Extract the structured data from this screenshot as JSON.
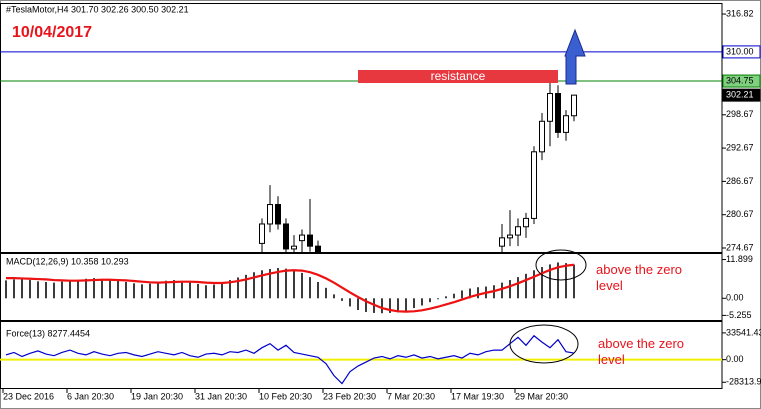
{
  "chart_data": [
    {
      "type": "candlestick",
      "title": "#TeslaMotor,H4  301.70 302.26 300.50 302.21",
      "date_label": "10/04/2017",
      "annotation": "resistance",
      "open": [
        null,
        null,
        null,
        null,
        null,
        null,
        null,
        null,
        null,
        null,
        null,
        null,
        null,
        null,
        null,
        null,
        null,
        null,
        null,
        null,
        null,
        null,
        null,
        null,
        null,
        null,
        null,
        null,
        null,
        null,
        null,
        null,
        275.5,
        279.0,
        282.5,
        279.0,
        274.5,
        276.0,
        277.0,
        275.0,
        null,
        null,
        null,
        null,
        null,
        null,
        null,
        null,
        null,
        null,
        null,
        null,
        null,
        null,
        null,
        null,
        null,
        null,
        null,
        null,
        null,
        null,
        275.0,
        276.5,
        277.0,
        278.5,
        280.0,
        292.0,
        297.5,
        302.5,
        295.5,
        298.5
      ],
      "high": [
        null,
        null,
        null,
        null,
        null,
        null,
        null,
        null,
        null,
        null,
        null,
        null,
        null,
        null,
        null,
        null,
        null,
        null,
        null,
        null,
        null,
        null,
        null,
        null,
        null,
        null,
        null,
        null,
        null,
        null,
        null,
        null,
        280.0,
        286.0,
        284.0,
        280.0,
        277.0,
        278.0,
        283.5,
        276.0,
        null,
        null,
        null,
        null,
        null,
        null,
        null,
        null,
        null,
        null,
        null,
        null,
        null,
        null,
        null,
        null,
        null,
        null,
        null,
        null,
        null,
        null,
        279.0,
        281.5,
        280.0,
        281.0,
        293.0,
        299.0,
        304.5,
        304.0,
        299.5,
        302.26
      ],
      "low": [
        null,
        null,
        null,
        null,
        null,
        null,
        null,
        null,
        null,
        null,
        null,
        null,
        null,
        null,
        null,
        null,
        null,
        null,
        null,
        null,
        null,
        null,
        null,
        null,
        null,
        null,
        null,
        null,
        null,
        null,
        null,
        null,
        273.0,
        277.5,
        278.0,
        273.0,
        272.0,
        273.0,
        274.0,
        272.0,
        null,
        null,
        null,
        null,
        null,
        null,
        null,
        null,
        null,
        null,
        null,
        null,
        null,
        null,
        null,
        null,
        null,
        null,
        null,
        null,
        null,
        null,
        273.5,
        275.0,
        275.0,
        276.5,
        279.0,
        290.5,
        293.0,
        294.5,
        294.0,
        297.5
      ],
      "close": [
        null,
        null,
        null,
        null,
        null,
        null,
        null,
        null,
        null,
        null,
        null,
        null,
        null,
        null,
        null,
        null,
        null,
        null,
        null,
        null,
        null,
        null,
        null,
        null,
        null,
        null,
        null,
        null,
        null,
        null,
        null,
        null,
        279.0,
        282.5,
        279.0,
        274.5,
        275.0,
        277.0,
        275.0,
        273.5,
        null,
        null,
        null,
        null,
        null,
        null,
        null,
        null,
        null,
        null,
        null,
        null,
        null,
        null,
        null,
        null,
        null,
        null,
        null,
        null,
        null,
        null,
        276.5,
        277.0,
        278.5,
        280.0,
        292.0,
        297.5,
        302.5,
        295.5,
        298.5,
        302.21
      ],
      "ylim": [
        273.95,
        318.63
      ],
      "yticks": [
        316.82,
        {
          "value": 310,
          "label": "310.00"
        },
        304.75,
        302.21,
        298.67,
        292.67,
        286.67,
        280.67,
        274.67
      ],
      "levels": [
        {
          "value": 310,
          "color": "#0000cc"
        },
        {
          "value": 304.75,
          "color": "#008000"
        }
      ]
    },
    {
      "type": "macd",
      "title": "MACD(12,26,9) 10.358 10.293",
      "annotation": "above the zero level",
      "values": [
        5.5,
        5.8,
        6.0,
        5.6,
        5.2,
        5.0,
        4.8,
        5.1,
        5.4,
        5.7,
        6.0,
        6.2,
        5.9,
        5.5,
        5.3,
        5.0,
        4.6,
        4.3,
        4.5,
        4.9,
        5.4,
        5.6,
        5.3,
        5.0,
        4.4,
        4.0,
        4.2,
        4.8,
        5.6,
        6.4,
        7.2,
        8.0,
        8.6,
        9.0,
        9.3,
        9.1,
        8.6,
        7.8,
        6.5,
        5.0,
        3.2,
        1.2,
        -0.8,
        -2.5,
        -3.6,
        -4.2,
        -4.5,
        -4.6,
        -4.5,
        -4.3,
        -3.8,
        -3.0,
        -2.2,
        -1.2,
        -0.3,
        0.6,
        1.4,
        2.4,
        3.0,
        3.4,
        3.6,
        4.0,
        4.8,
        5.6,
        6.5,
        7.5,
        8.6,
        9.6,
        10.4,
        11.0,
        10.8,
        10.358
      ],
      "signal": [
        6.2,
        6.2,
        6.1,
        6.0,
        5.9,
        5.8,
        5.6,
        5.5,
        5.4,
        5.4,
        5.5,
        5.6,
        5.7,
        5.7,
        5.6,
        5.5,
        5.3,
        5.1,
        4.9,
        4.8,
        4.9,
        5.0,
        5.1,
        5.1,
        5.0,
        4.8,
        4.7,
        4.7,
        4.9,
        5.3,
        5.8,
        6.4,
        7.0,
        7.6,
        8.1,
        8.5,
        8.6,
        8.5,
        8.0,
        7.2,
        6.1,
        4.8,
        3.3,
        1.8,
        0.4,
        -0.9,
        -2.0,
        -3.0,
        -3.6,
        -4.0,
        -4.1,
        -4.0,
        -3.7,
        -3.2,
        -2.6,
        -1.9,
        -1.2,
        -0.4,
        0.4,
        1.1,
        1.7,
        2.2,
        2.9,
        3.7,
        4.6,
        5.6,
        6.6,
        7.7,
        8.7,
        9.5,
        10.0,
        10.293
      ],
      "color": "#3c3c3c",
      "signal_color": "#ee1111",
      "ylim": [
        -6.67,
        13.6
      ],
      "yticks": [
        11.899,
        {
          "value": 0,
          "label": "0.00"
        },
        -5.255
      ]
    },
    {
      "type": "line",
      "title": "Force(13) 8277.4454",
      "annotation": "above the zero level",
      "categories": [
        "23 Dec 2016",
        null,
        null,
        null,
        null,
        null,
        null,
        null,
        "6 Jan 20:30",
        null,
        null,
        null,
        null,
        null,
        null,
        null,
        "19 Jan 20:30",
        null,
        null,
        null,
        null,
        null,
        null,
        null,
        "31 Jan 20:30",
        null,
        null,
        null,
        null,
        null,
        null,
        null,
        "10 Feb 20:30",
        null,
        null,
        null,
        null,
        null,
        null,
        null,
        "23 Feb 20:30",
        null,
        null,
        null,
        null,
        null,
        null,
        null,
        "7 Mar 20:30",
        null,
        null,
        null,
        null,
        null,
        null,
        null,
        "17 Mar 19:30",
        null,
        null,
        null,
        null,
        null,
        null,
        null,
        "29 Mar 20:30",
        null,
        null,
        null,
        null,
        null,
        null,
        null
      ],
      "values": [
        6000,
        9000,
        4000,
        8000,
        11000,
        7000,
        5000,
        9000,
        12000,
        8000,
        6000,
        10000,
        7000,
        5000,
        8000,
        9000,
        6000,
        4000,
        7000,
        10000,
        8000,
        6000,
        9000,
        5000,
        3000,
        7000,
        8000,
        6000,
        10000,
        9000,
        12000,
        8000,
        15000,
        20000,
        12000,
        18000,
        9000,
        7000,
        5000,
        3000,
        -5000,
        -20000,
        -30000,
        -15000,
        -8000,
        -3000,
        2000,
        4000,
        1000,
        5000,
        3000,
        6000,
        2000,
        4000,
        1000,
        3000,
        5000,
        2000,
        8000,
        6000,
        10000,
        12000,
        12000,
        20000,
        28000,
        18000,
        30000,
        22000,
        15000,
        25000,
        10000,
        8277.4454
      ],
      "color": "#0000cc",
      "zero_line_color": "#f0f000",
      "ylim": [
        -35500,
        47200
      ],
      "yticks": [
        33541.43,
        {
          "value": 0,
          "label": "0.00"
        },
        -28313.9
      ]
    }
  ]
}
